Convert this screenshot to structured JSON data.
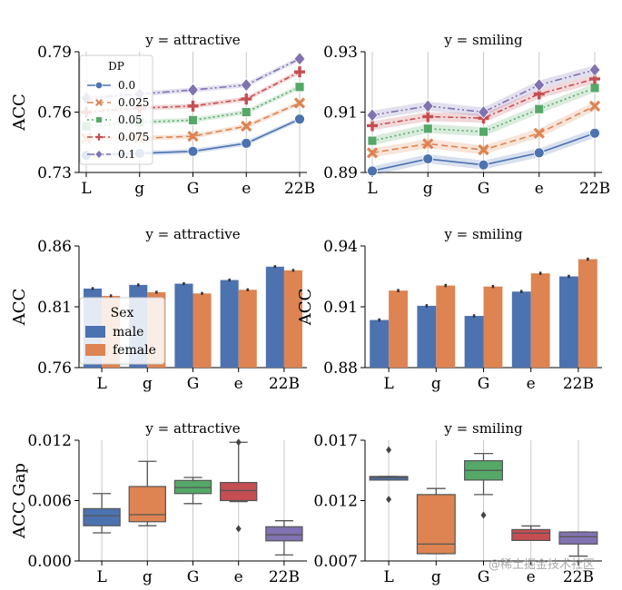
{
  "chart_data": [
    {
      "type": "line",
      "title": "y = attractive",
      "ylabel": "ACC",
      "ylim": [
        0.73,
        0.79
      ],
      "yticks": [
        "0.73",
        "0.76",
        "0.79"
      ],
      "yticks_values": [
        0.73,
        0.76,
        0.79
      ],
      "categories": [
        "L",
        "g",
        "G",
        "e",
        "22B"
      ],
      "legend": {
        "title": "DP",
        "placement": "upper-left"
      },
      "series": [
        {
          "name": "0.0",
          "color": "#4c72b0",
          "marker": "circle",
          "dash": "",
          "values": [
            0.7385,
            0.7395,
            0.7405,
            0.7445,
            0.7565
          ],
          "band": 0.0012
        },
        {
          "name": "0.025",
          "color": "#dd8452",
          "marker": "x",
          "dash": "7,4",
          "values": [
            0.747,
            0.747,
            0.748,
            0.753,
            0.7645
          ],
          "band": 0.0012
        },
        {
          "name": "0.05",
          "color": "#55a868",
          "marker": "square",
          "dash": "2,3",
          "values": [
            0.753,
            0.755,
            0.756,
            0.76,
            0.7725
          ],
          "band": 0.0012
        },
        {
          "name": "0.075",
          "color": "#c44e52",
          "marker": "plus",
          "dash": "6,3,2,3",
          "values": [
            0.76,
            0.762,
            0.763,
            0.7665,
            0.78
          ],
          "band": 0.0012
        },
        {
          "name": "0.1",
          "color": "#8172b2",
          "marker": "diamond",
          "dash": "8,3,2,3,2,3",
          "values": [
            0.767,
            0.769,
            0.771,
            0.7735,
            0.7865
          ],
          "band": 0.0012
        }
      ]
    },
    {
      "type": "line",
      "title": "y = smiling",
      "ylabel": "",
      "ylim": [
        0.89,
        0.93
      ],
      "yticks": [
        "0.89",
        "0.91",
        "0.93"
      ],
      "yticks_values": [
        0.89,
        0.91,
        0.93
      ],
      "categories": [
        "L",
        "g",
        "G",
        "e",
        "22B"
      ],
      "series": [
        {
          "name": "0.0",
          "color": "#4c72b0",
          "marker": "circle",
          "dash": "",
          "values": [
            0.8905,
            0.8945,
            0.8925,
            0.8965,
            0.903
          ],
          "band": 0.0015
        },
        {
          "name": "0.025",
          "color": "#dd8452",
          "marker": "x",
          "dash": "7,4",
          "values": [
            0.8965,
            0.8995,
            0.8975,
            0.903,
            0.912
          ],
          "band": 0.0015
        },
        {
          "name": "0.05",
          "color": "#55a868",
          "marker": "square",
          "dash": "2,3",
          "values": [
            0.9005,
            0.9045,
            0.9035,
            0.911,
            0.918
          ],
          "band": 0.0015
        },
        {
          "name": "0.075",
          "color": "#c44e52",
          "marker": "plus",
          "dash": "6,3,2,3",
          "values": [
            0.9055,
            0.9085,
            0.908,
            0.916,
            0.921
          ],
          "band": 0.0015
        },
        {
          "name": "0.1",
          "color": "#8172b2",
          "marker": "diamond",
          "dash": "8,3,2,3,2,3",
          "values": [
            0.909,
            0.912,
            0.91,
            0.919,
            0.924
          ],
          "band": 0.0015
        }
      ]
    },
    {
      "type": "bar",
      "title": "y = attractive",
      "ylabel": "ACC",
      "ylim": [
        0.76,
        0.86
      ],
      "yticks": [
        "0.76",
        "0.81",
        "0.86"
      ],
      "yticks_values": [
        0.76,
        0.81,
        0.86
      ],
      "categories": [
        "L",
        "g",
        "G",
        "e",
        "22B"
      ],
      "legend": {
        "title": "Sex",
        "placement": "lower-left"
      },
      "series": [
        {
          "name": "male",
          "color": "#4c72b0",
          "values": [
            0.825,
            0.828,
            0.829,
            0.832,
            0.843
          ],
          "err": 0.0012
        },
        {
          "name": "female",
          "color": "#dd8452",
          "values": [
            0.819,
            0.822,
            0.821,
            0.824,
            0.84
          ],
          "err": 0.0012
        }
      ]
    },
    {
      "type": "bar",
      "title": "y = smiling",
      "ylabel": "ACC",
      "ylim": [
        0.88,
        0.94
      ],
      "yticks": [
        "0.88",
        "0.91",
        "0.94"
      ],
      "yticks_values": [
        0.88,
        0.91,
        0.94
      ],
      "categories": [
        "L",
        "g",
        "G",
        "e",
        "22B"
      ],
      "series": [
        {
          "name": "male",
          "color": "#4c72b0",
          "values": [
            0.9035,
            0.9105,
            0.9055,
            0.9175,
            0.925
          ],
          "err": 0.0008
        },
        {
          "name": "female",
          "color": "#dd8452",
          "values": [
            0.918,
            0.9205,
            0.92,
            0.9265,
            0.9335
          ],
          "err": 0.0008
        }
      ]
    },
    {
      "type": "box",
      "title": "y = attractive",
      "ylabel": "ACC Gap",
      "ylim": [
        0.0,
        0.012
      ],
      "yticks": [
        "0.000",
        "0.006",
        "0.012"
      ],
      "yticks_values": [
        0.0,
        0.006,
        0.012
      ],
      "categories": [
        "L",
        "g",
        "G",
        "e",
        "22B"
      ],
      "boxes": [
        {
          "color": "#4c72b0",
          "wlow": 0.0028,
          "q1": 0.0035,
          "median": 0.0045,
          "q3": 0.0052,
          "whigh": 0.0067,
          "outliers": []
        },
        {
          "color": "#dd8452",
          "wlow": 0.0035,
          "q1": 0.0039,
          "median": 0.0046,
          "q3": 0.0074,
          "whigh": 0.0099,
          "outliers": []
        },
        {
          "color": "#55a868",
          "wlow": 0.0057,
          "q1": 0.0067,
          "median": 0.0073,
          "q3": 0.008,
          "whigh": 0.0083,
          "outliers": []
        },
        {
          "color": "#c44e52",
          "wlow": 0.0059,
          "q1": 0.006,
          "median": 0.007,
          "q3": 0.0078,
          "whigh": 0.0118,
          "outliers": [
            0.0032,
            0.0118
          ]
        },
        {
          "color": "#8172b2",
          "wlow": 0.0006,
          "q1": 0.002,
          "median": 0.0026,
          "q3": 0.0034,
          "whigh": 0.004,
          "outliers": []
        }
      ]
    },
    {
      "type": "box",
      "title": "y = smiling",
      "ylabel": "",
      "ylim": [
        0.007,
        0.017
      ],
      "yticks": [
        "0.007",
        "0.012",
        "0.017"
      ],
      "yticks_values": [
        0.007,
        0.012,
        0.017
      ],
      "categories": [
        "L",
        "g",
        "G",
        "e",
        "22B"
      ],
      "boxes": [
        {
          "color": "#4c72b0",
          "wlow": 0.0137,
          "q1": 0.0137,
          "median": 0.0139,
          "q3": 0.014,
          "whigh": 0.014,
          "outliers": [
            0.0162,
            0.0121
          ]
        },
        {
          "color": "#dd8452",
          "wlow": 0.0076,
          "q1": 0.0076,
          "median": 0.0084,
          "q3": 0.0125,
          "whigh": 0.013,
          "outliers": []
        },
        {
          "color": "#55a868",
          "wlow": 0.0125,
          "q1": 0.0137,
          "median": 0.0145,
          "q3": 0.0153,
          "whigh": 0.0159,
          "outliers": [
            0.0108
          ]
        },
        {
          "color": "#c44e52",
          "wlow": 0.0087,
          "q1": 0.0087,
          "median": 0.0093,
          "q3": 0.0096,
          "whigh": 0.0099,
          "outliers": []
        },
        {
          "color": "#8172b2",
          "wlow": 0.0074,
          "q1": 0.0084,
          "median": 0.009,
          "q3": 0.0094,
          "whigh": 0.0094,
          "outliers": []
        }
      ]
    }
  ],
  "watermark": "@稀土掘金技术社区"
}
